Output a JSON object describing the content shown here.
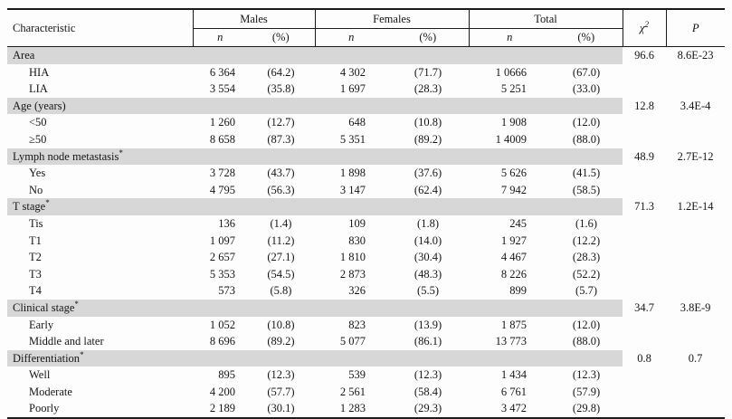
{
  "table": {
    "headers": {
      "characteristic": "Characteristic",
      "males": "Males",
      "females": "Females",
      "total": "Total",
      "n": "n",
      "pct": "(%)",
      "chi": "χ",
      "chi_sup": "2",
      "p": "P"
    },
    "sections": [
      {
        "label": "Area",
        "mark": "",
        "chi2": "96.6",
        "p": "8.6E-23",
        "rows": [
          {
            "label": "HIA",
            "m_n": "6 364",
            "m_pct": "(64.2)",
            "f_n": "4 302",
            "f_pct": "(71.7)",
            "t_n": "1 0666",
            "t_pct": "(67.0)"
          },
          {
            "label": "LIA",
            "m_n": "3 554",
            "m_pct": "(35.8)",
            "f_n": "1 697",
            "f_pct": "(28.3)",
            "t_n": "5 251",
            "t_pct": "(33.0)"
          }
        ]
      },
      {
        "label": "Age (years)",
        "mark": "",
        "chi2": "12.8",
        "p": "3.4E-4",
        "rows": [
          {
            "label": "<50",
            "m_n": "1 260",
            "m_pct": "(12.7)",
            "f_n": "648",
            "f_pct": "(10.8)",
            "t_n": "1 908",
            "t_pct": "(12.0)"
          },
          {
            "label": "≥50",
            "m_n": "8 658",
            "m_pct": "(87.3)",
            "f_n": "5 351",
            "f_pct": "(89.2)",
            "t_n": "1 4009",
            "t_pct": "(88.0)"
          }
        ]
      },
      {
        "label": "Lymph node metastasis",
        "mark": "*",
        "chi2": "48.9",
        "p": "2.7E-12",
        "rows": [
          {
            "label": "Yes",
            "m_n": "3 728",
            "m_pct": "(43.7)",
            "f_n": "1 898",
            "f_pct": "(37.6)",
            "t_n": "5 626",
            "t_pct": "(41.5)"
          },
          {
            "label": "No",
            "m_n": "4 795",
            "m_pct": "(56.3)",
            "f_n": "3 147",
            "f_pct": "(62.4)",
            "t_n": "7 942",
            "t_pct": "(58.5)"
          }
        ]
      },
      {
        "label": "T stage",
        "mark": "*",
        "chi2": "71.3",
        "p": "1.2E-14",
        "rows": [
          {
            "label": "Tis",
            "m_n": "136",
            "m_pct": "(1.4)",
            "f_n": "109",
            "f_pct": "(1.8)",
            "t_n": "245",
            "t_pct": "(1.6)"
          },
          {
            "label": "T1",
            "m_n": "1 097",
            "m_pct": "(11.2)",
            "f_n": "830",
            "f_pct": "(14.0)",
            "t_n": "1 927",
            "t_pct": "(12.2)"
          },
          {
            "label": "T2",
            "m_n": "2 657",
            "m_pct": "(27.1)",
            "f_n": "1 810",
            "f_pct": "(30.4)",
            "t_n": "4 467",
            "t_pct": "(28.3)"
          },
          {
            "label": "T3",
            "m_n": "5 353",
            "m_pct": "(54.5)",
            "f_n": "2 873",
            "f_pct": "(48.3)",
            "t_n": "8 226",
            "t_pct": "(52.2)"
          },
          {
            "label": "T4",
            "m_n": "573",
            "m_pct": "(5.8)",
            "f_n": "326",
            "f_pct": "(5.5)",
            "t_n": "899",
            "t_pct": "(5.7)"
          }
        ]
      },
      {
        "label": "Clinical stage",
        "mark": "*",
        "chi2": "34.7",
        "p": "3.8E-9",
        "rows": [
          {
            "label": "Early",
            "m_n": "1 052",
            "m_pct": "(10.8)",
            "f_n": "823",
            "f_pct": "(13.9)",
            "t_n": "1 875",
            "t_pct": "(12.0)"
          },
          {
            "label": "Middle and later",
            "m_n": "8 696",
            "m_pct": "(89.2)",
            "f_n": "5 077",
            "f_pct": "(86.1)",
            "t_n": "13 773",
            "t_pct": "(88.0)"
          }
        ]
      },
      {
        "label": "Differentiation",
        "mark": "*",
        "chi2": "0.8",
        "p": "0.7",
        "rows": [
          {
            "label": "Well",
            "m_n": "895",
            "m_pct": "(12.3)",
            "f_n": "539",
            "f_pct": "(12.3)",
            "t_n": "1 434",
            "t_pct": "(12.3)"
          },
          {
            "label": "Moderate",
            "m_n": "4 200",
            "m_pct": "(57.7)",
            "f_n": "2 561",
            "f_pct": "(58.4)",
            "t_n": "6 761",
            "t_pct": "(57.9)"
          },
          {
            "label": "Poorly",
            "m_n": "2 189",
            "m_pct": "(30.1)",
            "f_n": "1 283",
            "f_pct": "(29.3)",
            "t_n": "3 472",
            "t_pct": "(29.8)"
          }
        ]
      }
    ]
  }
}
